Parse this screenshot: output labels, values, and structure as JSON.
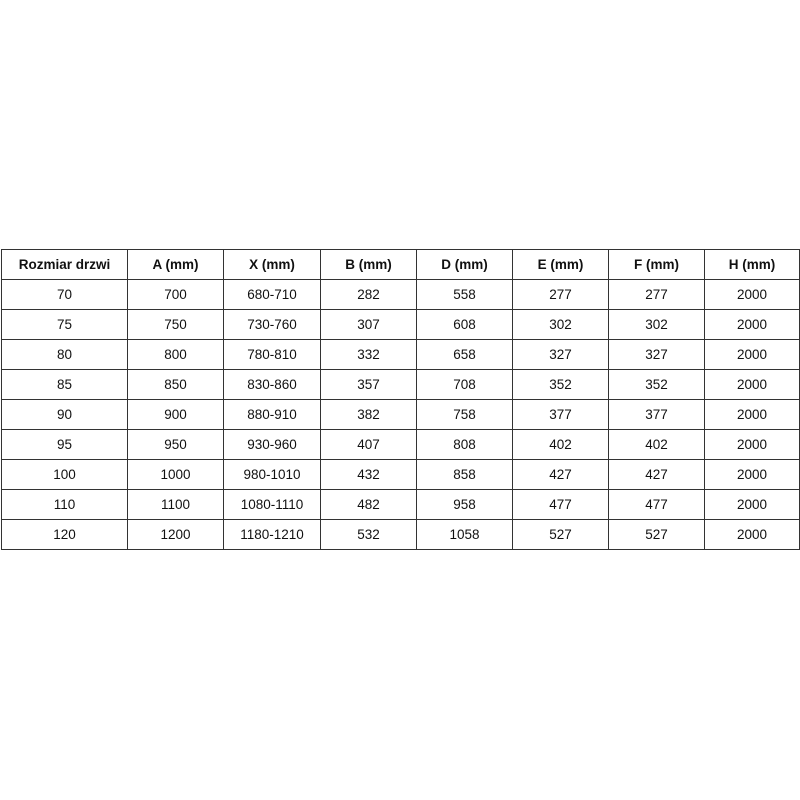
{
  "table": {
    "headers": [
      "Rozmiar drzwi",
      "A (mm)",
      "X (mm)",
      "B (mm)",
      "D (mm)",
      "E (mm)",
      "F (mm)",
      "H (mm)"
    ],
    "rows": [
      [
        "70",
        "700",
        "680-710",
        "282",
        "558",
        "277",
        "277",
        "2000"
      ],
      [
        "75",
        "750",
        "730-760",
        "307",
        "608",
        "302",
        "302",
        "2000"
      ],
      [
        "80",
        "800",
        "780-810",
        "332",
        "658",
        "327",
        "327",
        "2000"
      ],
      [
        "85",
        "850",
        "830-860",
        "357",
        "708",
        "352",
        "352",
        "2000"
      ],
      [
        "90",
        "900",
        "880-910",
        "382",
        "758",
        "377",
        "377",
        "2000"
      ],
      [
        "95",
        "950",
        "930-960",
        "407",
        "808",
        "402",
        "402",
        "2000"
      ],
      [
        "100",
        "1000",
        "980-1010",
        "432",
        "858",
        "427",
        "427",
        "2000"
      ],
      [
        "110",
        "1100",
        "1080-1110",
        "482",
        "958",
        "477",
        "477",
        "2000"
      ],
      [
        "120",
        "1200",
        "1180-1210",
        "532",
        "1058",
        "527",
        "527",
        "2000"
      ]
    ]
  }
}
